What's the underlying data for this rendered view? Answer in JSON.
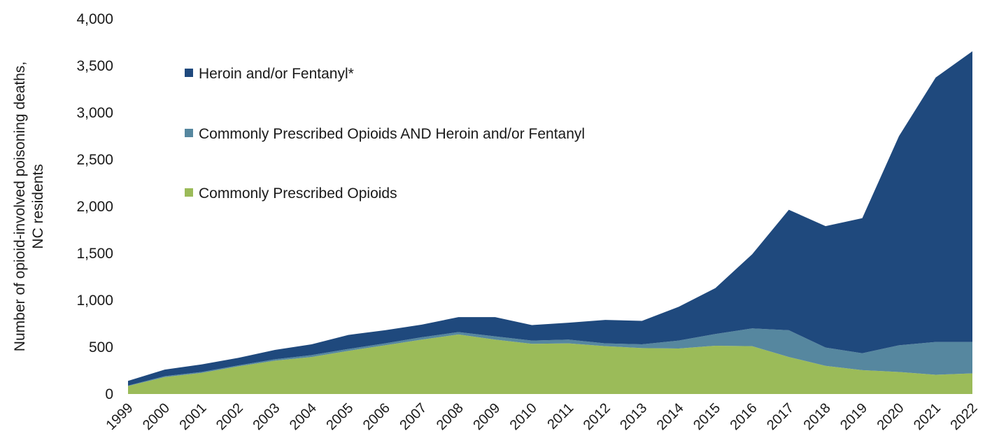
{
  "chart_data": {
    "type": "area",
    "stacked": true,
    "ylabel": [
      "Number of opioid-involved poisoning deaths,",
      "NC residents"
    ],
    "xlabel": "",
    "ylim": [
      0,
      4000
    ],
    "yticks": [
      "0",
      "500",
      "1,000",
      "1,500",
      "2,000",
      "2,500",
      "3,000",
      "3,500",
      "4,000"
    ],
    "x": [
      "1999",
      "2000",
      "2001",
      "2002",
      "2003",
      "2004",
      "2005",
      "2006",
      "2007",
      "2008",
      "2009",
      "2010",
      "2011",
      "2012",
      "2013",
      "2014",
      "2015",
      "2016",
      "2017",
      "2018",
      "2019",
      "2020",
      "2021",
      "2022"
    ],
    "series": [
      {
        "name": "Commonly Prescribed Opioids",
        "color": "#9bbb59",
        "values": [
          85,
          180,
          225,
          295,
          355,
          395,
          460,
          520,
          580,
          635,
          580,
          535,
          540,
          510,
          490,
          485,
          515,
          510,
          395,
          300,
          255,
          235,
          205,
          220
        ]
      },
      {
        "name": "Commonly Prescribed Opioids AND Heroin and/or Fentanyl",
        "color": "#56879f",
        "values": [
          5,
          10,
          10,
          10,
          15,
          20,
          20,
          20,
          25,
          25,
          35,
          35,
          40,
          30,
          40,
          85,
          125,
          190,
          285,
          195,
          180,
          285,
          350,
          335
        ]
      },
      {
        "name": "Heroin and/or Fentanyl*",
        "color": "#1f497d",
        "values": [
          50,
          70,
          80,
          80,
          100,
          115,
          150,
          140,
          135,
          160,
          205,
          165,
          180,
          250,
          250,
          360,
          490,
          790,
          1285,
          1295,
          1440,
          2230,
          2820,
          3100
        ]
      }
    ],
    "legend_order": [
      "Heroin and/or Fentanyl*",
      "Commonly Prescribed Opioids AND Heroin and/or Fentanyl",
      "Commonly Prescribed Opioids"
    ],
    "legend_position": "upper-left inside plot",
    "grid": false
  }
}
